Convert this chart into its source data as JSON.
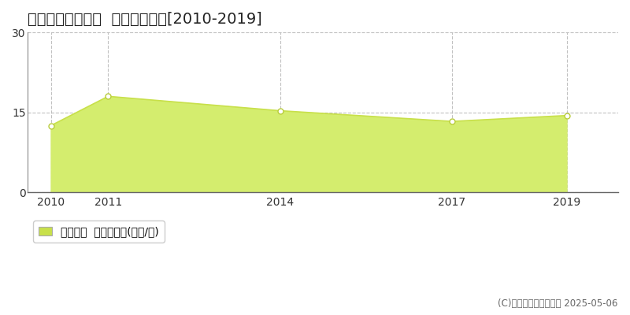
{
  "title": "新潟市秋葉区東島  住宅価格推移[2010-2019]",
  "years": [
    2010,
    2011,
    2014,
    2017,
    2019
  ],
  "values": [
    12.5,
    18.0,
    15.3,
    13.3,
    14.4
  ],
  "line_color": "#c8e04a",
  "fill_color": "#d4ed6e",
  "fill_alpha": 1.0,
  "marker_color": "white",
  "marker_edge_color": "#b8cc3a",
  "ylim": [
    0,
    30
  ],
  "yticks": [
    0,
    15,
    30
  ],
  "xlim_left": 2009.6,
  "xlim_right": 2019.9,
  "background_color": "#ffffff",
  "plot_bg_color": "#ffffff",
  "grid_color": "#bbbbbb",
  "legend_label": "住宅価格  平均坪単価(万円/坪)",
  "legend_marker_color": "#c8e04a",
  "copyright_text": "(C)土地価格ドットコム 2025-05-06",
  "title_fontsize": 14,
  "tick_fontsize": 10,
  "legend_fontsize": 10
}
